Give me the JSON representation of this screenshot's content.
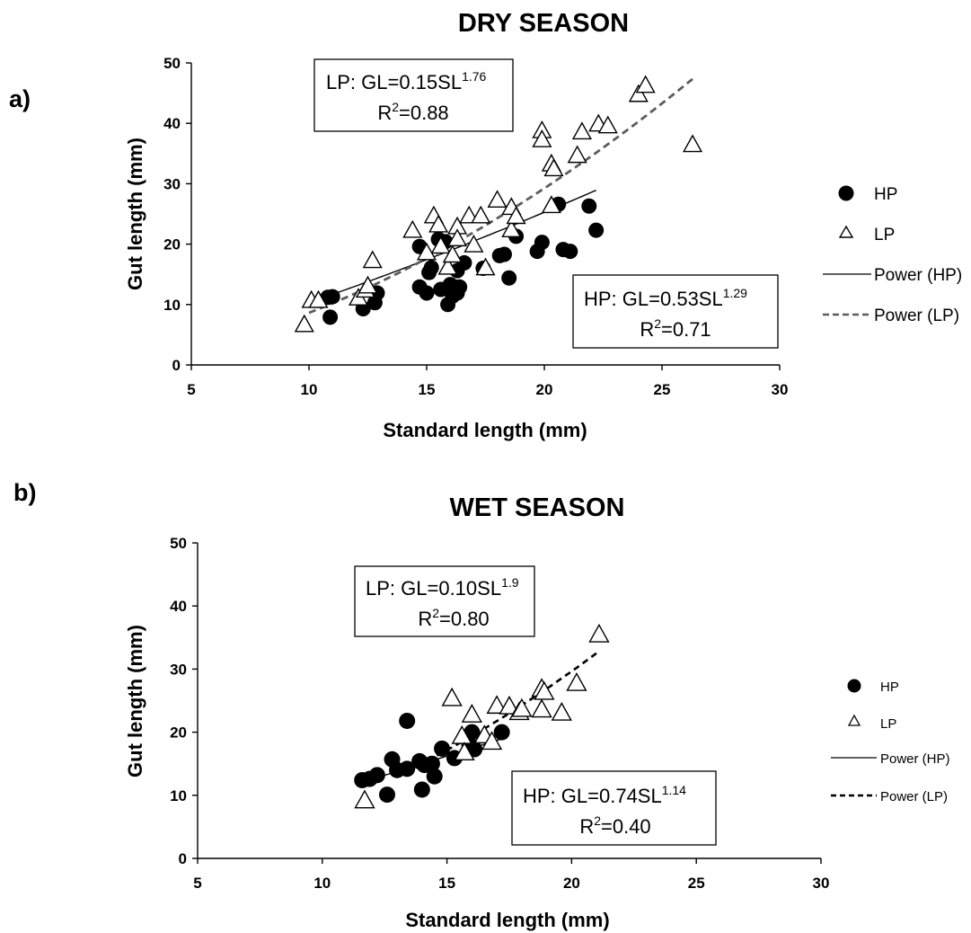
{
  "chart_data": [
    {
      "type": "scatter",
      "panel_label": "a)",
      "title": "DRY SEASON",
      "xlabel": "Standard length (mm)",
      "ylabel": "Gut length (mm)",
      "xlim": [
        5,
        30
      ],
      "ylim": [
        0,
        50
      ],
      "xticks": [
        5,
        10,
        15,
        20,
        25,
        30
      ],
      "yticks": [
        0,
        10,
        20,
        30,
        40,
        50
      ],
      "grid": false,
      "legend_position": "right",
      "series": [
        {
          "name": "HP",
          "marker": "filled-circle",
          "color": "#000000",
          "points": [
            [
              10.8,
              11.2
            ],
            [
              10.9,
              7.9
            ],
            [
              11.0,
              11.3
            ],
            [
              12.3,
              9.3
            ],
            [
              12.8,
              10.3
            ],
            [
              12.9,
              11.9
            ],
            [
              14.7,
              19.6
            ],
            [
              14.7,
              12.9
            ],
            [
              15.0,
              11.9
            ],
            [
              15.1,
              15.3
            ],
            [
              15.2,
              16.1
            ],
            [
              15.5,
              20.8
            ],
            [
              15.6,
              12.5
            ],
            [
              15.8,
              20.4
            ],
            [
              15.9,
              10.0
            ],
            [
              16.0,
              13.3
            ],
            [
              16.1,
              11.4
            ],
            [
              16.2,
              12.9
            ],
            [
              16.3,
              11.9
            ],
            [
              16.3,
              15.6
            ],
            [
              16.4,
              12.9
            ],
            [
              16.6,
              16.9
            ],
            [
              17.4,
              16.0
            ],
            [
              18.1,
              18.1
            ],
            [
              18.3,
              18.3
            ],
            [
              18.5,
              14.4
            ],
            [
              18.8,
              21.3
            ],
            [
              19.7,
              18.8
            ],
            [
              19.9,
              20.3
            ],
            [
              20.6,
              26.6
            ],
            [
              20.8,
              19.1
            ],
            [
              21.1,
              18.8
            ],
            [
              21.9,
              26.3
            ],
            [
              22.2,
              22.3
            ]
          ]
        },
        {
          "name": "LP",
          "marker": "open-triangle",
          "color": "#000000",
          "points": [
            [
              9.8,
              6.6
            ],
            [
              10.1,
              10.6
            ],
            [
              10.4,
              10.6
            ],
            [
              12.1,
              11.0
            ],
            [
              12.4,
              12.3
            ],
            [
              12.5,
              13.0
            ],
            [
              12.7,
              17.2
            ],
            [
              14.4,
              22.2
            ],
            [
              15.0,
              18.5
            ],
            [
              15.3,
              24.6
            ],
            [
              15.5,
              23.1
            ],
            [
              15.6,
              19.6
            ],
            [
              15.9,
              16.1
            ],
            [
              16.1,
              18.1
            ],
            [
              16.3,
              22.8
            ],
            [
              16.3,
              20.8
            ],
            [
              16.8,
              24.6
            ],
            [
              17.0,
              19.8
            ],
            [
              17.3,
              24.6
            ],
            [
              17.5,
              16.0
            ],
            [
              18.0,
              27.2
            ],
            [
              18.6,
              26.0
            ],
            [
              18.6,
              22.3
            ],
            [
              18.8,
              24.5
            ],
            [
              19.9,
              38.7
            ],
            [
              19.9,
              37.2
            ],
            [
              20.3,
              33.2
            ],
            [
              20.3,
              26.3
            ],
            [
              20.4,
              32.4
            ],
            [
              21.4,
              34.6
            ],
            [
              21.6,
              38.5
            ],
            [
              22.3,
              39.8
            ],
            [
              22.7,
              39.5
            ],
            [
              24.0,
              44.7
            ],
            [
              24.3,
              46.2
            ],
            [
              26.3,
              36.4
            ]
          ]
        }
      ],
      "fits": [
        {
          "name": "Power (HP)",
          "a": 0.53,
          "b": 1.29,
          "x_range": [
            10.5,
            22.2
          ],
          "line_style": "solid",
          "color": "#000000"
        },
        {
          "name": "Power (LP)",
          "a": 0.15,
          "b": 1.76,
          "x_range": [
            10.0,
            26.3
          ],
          "line_style": "dashed",
          "color": "#5c5c5c"
        }
      ],
      "legend": [
        "HP",
        "LP",
        "Power (HP)",
        "Power (LP)"
      ],
      "annotations": [
        {
          "label": "LP: GL=0.15SL",
          "exponent": "1.76",
          "r2_label": "R",
          "r2_exp": "2",
          "r2_value": "=0.88"
        },
        {
          "label": "HP: GL=0.53SL",
          "exponent": "1.29",
          "r2_label": "R",
          "r2_exp": "2",
          "r2_value": "=0.71"
        }
      ]
    },
    {
      "type": "scatter",
      "panel_label": "b)",
      "title": "WET SEASON",
      "xlabel": "Standard length (mm)",
      "ylabel": "Gut length (mm)",
      "xlim": [
        5,
        30
      ],
      "ylim": [
        0,
        50
      ],
      "xticks": [
        5,
        10,
        15,
        20,
        25,
        30
      ],
      "yticks": [
        0,
        10,
        20,
        30,
        40,
        50
      ],
      "grid": false,
      "legend_position": "right",
      "series": [
        {
          "name": "HP",
          "marker": "filled-circle",
          "color": "#000000",
          "points": [
            [
              11.6,
              12.4
            ],
            [
              11.9,
              12.6
            ],
            [
              12.2,
              13.2
            ],
            [
              12.6,
              10.1
            ],
            [
              12.8,
              15.7
            ],
            [
              13.0,
              14.0
            ],
            [
              13.4,
              14.2
            ],
            [
              13.4,
              21.8
            ],
            [
              13.9,
              15.4
            ],
            [
              14.0,
              10.9
            ],
            [
              14.1,
              14.8
            ],
            [
              14.4,
              15.0
            ],
            [
              14.5,
              13.0
            ],
            [
              14.8,
              17.4
            ],
            [
              15.3,
              15.9
            ],
            [
              15.9,
              18.0
            ],
            [
              16.0,
              20.0
            ],
            [
              16.1,
              17.3
            ],
            [
              17.2,
              20.0
            ]
          ]
        },
        {
          "name": "LP",
          "marker": "open-triangle",
          "color": "#000000",
          "points": [
            [
              11.7,
              9.1
            ],
            [
              15.2,
              25.3
            ],
            [
              15.6,
              19.3
            ],
            [
              15.7,
              16.7
            ],
            [
              16.0,
              22.7
            ],
            [
              16.5,
              19.4
            ],
            [
              16.8,
              18.4
            ],
            [
              17.0,
              24.1
            ],
            [
              17.5,
              24.0
            ],
            [
              17.9,
              23.1
            ],
            [
              18.0,
              23.6
            ],
            [
              18.8,
              26.8
            ],
            [
              18.8,
              23.5
            ],
            [
              18.9,
              26.3
            ],
            [
              19.6,
              23.0
            ],
            [
              20.2,
              27.7
            ],
            [
              21.1,
              35.4
            ]
          ]
        }
      ],
      "fits": [
        {
          "name": "Power (HP)",
          "a": 0.74,
          "b": 1.14,
          "x_range": [
            11.6,
            17.2
          ],
          "line_style": "solid",
          "color": "#000000"
        },
        {
          "name": "Power (LP)",
          "a": 0.1,
          "b": 1.9,
          "x_range": [
            14.6,
            21.1
          ],
          "line_style": "dashed",
          "color": "#000000"
        }
      ],
      "legend": [
        "HP",
        "LP",
        "Power (HP)",
        "Power (LP)"
      ],
      "annotations": [
        {
          "label": "LP: GL=0.10SL",
          "exponent": "1.9",
          "r2_label": "R",
          "r2_exp": "2",
          "r2_value": "=0.80"
        },
        {
          "label": "HP: GL=0.74SL",
          "exponent": "1.14",
          "r2_label": "R",
          "r2_exp": "2",
          "r2_value": "=0.40"
        }
      ]
    }
  ]
}
